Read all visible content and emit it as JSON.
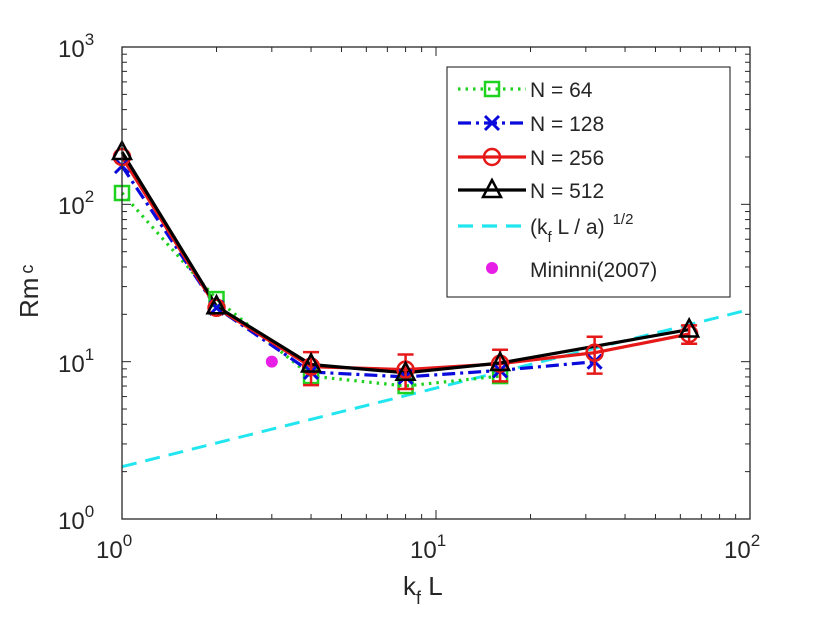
{
  "chart_data": {
    "type": "line",
    "xscale": "log",
    "yscale": "log",
    "xlim": [
      1,
      100
    ],
    "ylim": [
      1,
      1000
    ],
    "xlabel": {
      "main": "k",
      "sub": "f",
      "tail": " L"
    },
    "ylabel": {
      "main": "Rm",
      "sub": "c"
    },
    "xticks": [
      {
        "value": 1,
        "base": "10",
        "exp": "0"
      },
      {
        "value": 10,
        "base": "10",
        "exp": "1"
      },
      {
        "value": 100,
        "base": "10",
        "exp": "2"
      }
    ],
    "yticks": [
      {
        "value": 1,
        "base": "10",
        "exp": "0"
      },
      {
        "value": 10,
        "base": "10",
        "exp": "1"
      },
      {
        "value": 100,
        "base": "10",
        "exp": "2"
      },
      {
        "value": 1000,
        "base": "10",
        "exp": "3"
      }
    ],
    "legend_position": "top-right",
    "series": [
      {
        "name": "N = 64",
        "color": "#1fd21f",
        "dash": "dotted",
        "marker": "square",
        "x": [
          1,
          2,
          4,
          8,
          16
        ],
        "y": [
          118,
          25,
          8.1,
          7.0,
          8.1
        ]
      },
      {
        "name": "N = 128",
        "color": "#0a0adc",
        "dash": "dashdot",
        "marker": "x",
        "x": [
          1,
          2,
          4,
          8,
          16,
          32
        ],
        "y": [
          175,
          22,
          8.6,
          8.0,
          8.8,
          10.0
        ]
      },
      {
        "name": "N = 256",
        "color": "#e61919",
        "dash": "solid",
        "marker": "circle",
        "x": [
          1,
          2,
          4,
          8,
          16,
          32,
          64
        ],
        "y": [
          200,
          22,
          9.3,
          8.9,
          9.7,
          11.4,
          15.0
        ],
        "yerr": [
          0,
          0,
          2.2,
          2.2,
          2.2,
          3.0,
          2.0
        ]
      },
      {
        "name": "N = 512",
        "color": "#000000",
        "dash": "solid",
        "marker": "triangle",
        "x": [
          1,
          2,
          4,
          8,
          16,
          64
        ],
        "y": [
          215,
          22.5,
          9.6,
          8.5,
          9.8,
          16.0
        ]
      },
      {
        "name": "(k_f L / a)^1/2",
        "label_parts": {
          "open": "(k",
          "sub": "f",
          "mid": " L / a)",
          "exp": "1/2"
        },
        "color": "#22e6ef",
        "dash": "dashed",
        "marker": "none",
        "x": [
          1,
          100
        ],
        "y": [
          2.15,
          21.5
        ]
      },
      {
        "name": "Mininni(2007)",
        "color": "#e61ee6",
        "dash": "none",
        "marker": "filled-circle",
        "x": [
          3
        ],
        "y": [
          10
        ]
      }
    ]
  }
}
